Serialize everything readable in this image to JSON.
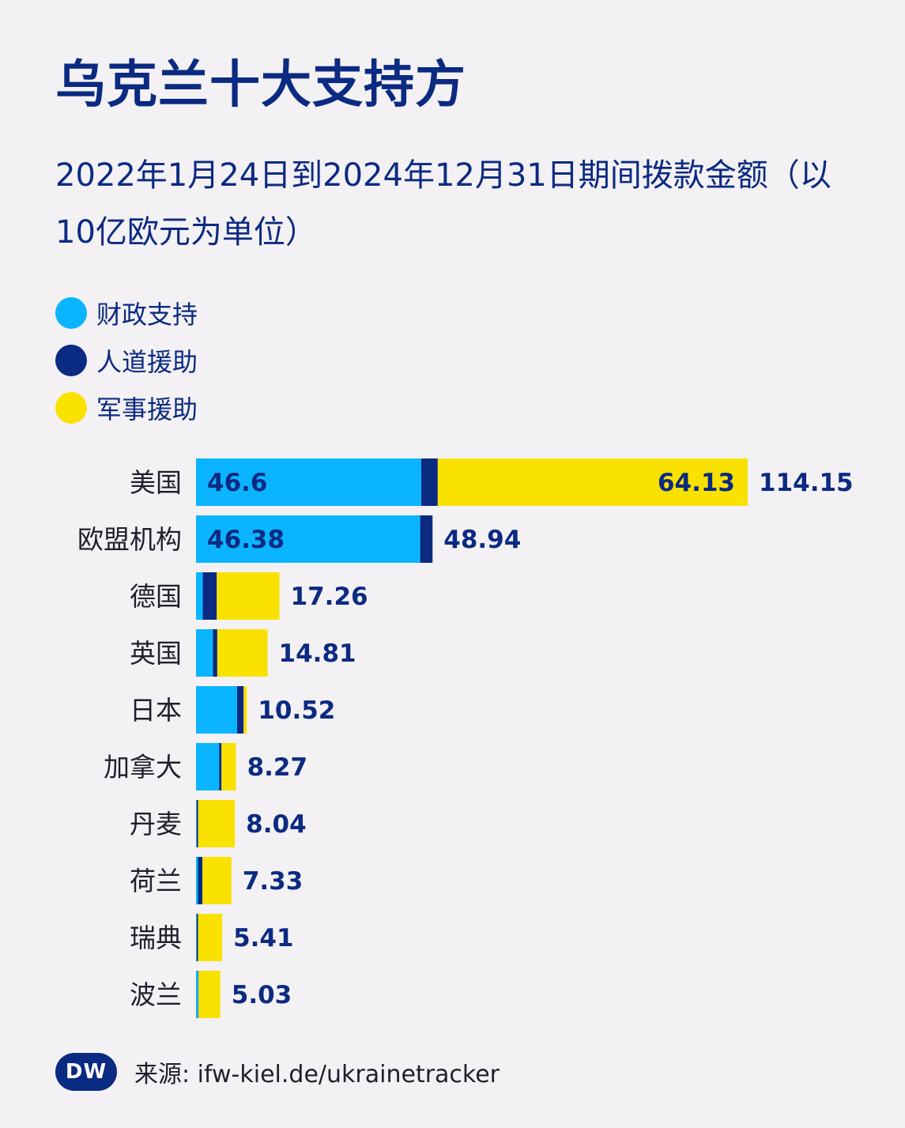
{
  "title": "乌克兰十大支持方",
  "subtitle": "2022年1月24日到2024年12月31日期间拨款金额（以10亿欧元为单位）",
  "legend": [
    {
      "label": "财政支持",
      "color": "#0bb4ff"
    },
    {
      "label": "人道援助",
      "color": "#0b2a82"
    },
    {
      "label": "军事援助",
      "color": "#f9e100"
    }
  ],
  "chart_data": {
    "type": "bar",
    "orientation": "horizontal",
    "stacked": true,
    "categories": [
      "美国",
      "欧盟机构",
      "德国",
      "英国",
      "日本",
      "加拿大",
      "丹麦",
      "荷兰",
      "瑞典",
      "波兰"
    ],
    "series": [
      {
        "name": "财政支持",
        "color": "#0bb4ff",
        "values": [
          46.6,
          46.38,
          1.4,
          3.5,
          8.5,
          4.8,
          0.15,
          0.4,
          0.15,
          0.45
        ]
      },
      {
        "name": "人道援助",
        "color": "#0b2a82",
        "values": [
          3.42,
          2.56,
          2.9,
          0.9,
          1.35,
          0.47,
          0.29,
          0.93,
          0.26,
          0.08
        ]
      },
      {
        "name": "军事援助",
        "color": "#f9e100",
        "values": [
          64.13,
          0,
          12.96,
          10.41,
          0.67,
          3.0,
          7.6,
          6.0,
          5.0,
          4.5
        ]
      }
    ],
    "inside_labels": [
      [
        "46.6",
        "64.13"
      ],
      [
        "46.38",
        ""
      ],
      [
        "",
        ""
      ],
      [
        "",
        ""
      ],
      [
        "",
        ""
      ],
      [
        "",
        ""
      ],
      [
        "",
        ""
      ],
      [
        "",
        ""
      ],
      [
        "",
        ""
      ],
      [
        "",
        ""
      ]
    ],
    "totals": [
      114.15,
      48.94,
      17.26,
      14.81,
      10.52,
      8.27,
      8.04,
      7.33,
      5.41,
      5.03
    ],
    "total_labels": [
      "114.15",
      "48.94",
      "17.26",
      "14.81",
      "10.52",
      "8.27",
      "8.04",
      "7.33",
      "5.41",
      "5.03"
    ],
    "xlim": [
      0,
      114.15
    ],
    "grid": false
  },
  "footer": {
    "logo_text": "DW",
    "source": "来源: ifw-kiel.de/ukrainetracker"
  }
}
